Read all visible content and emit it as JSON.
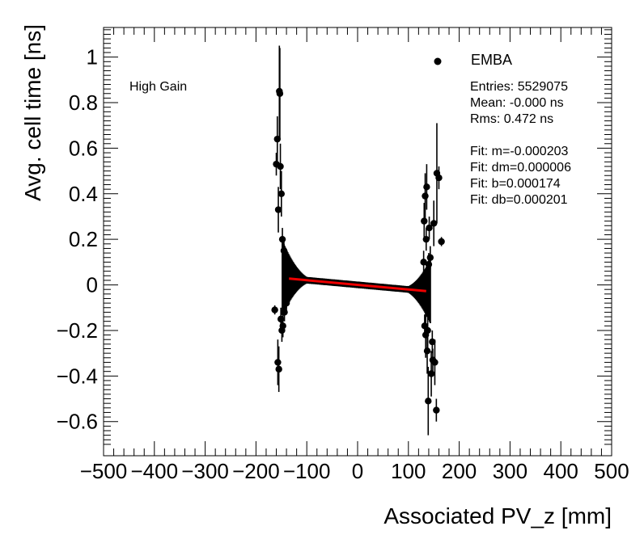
{
  "chart_data": {
    "type": "scatter",
    "xlabel": "Associated PV_z [mm]",
    "ylabel": "Avg. cell time [ns]",
    "xlim": [
      -500,
      500
    ],
    "ylim": [
      -0.75,
      1.13
    ],
    "x_ticks": [
      "−500",
      "−400",
      "−300",
      "−200",
      "−100",
      "0",
      "100",
      "200",
      "300",
      "400",
      "500"
    ],
    "y_ticks": [
      "−0.6",
      "−0.4",
      "−0.2",
      "0",
      "0.2",
      "0.4",
      "0.6",
      "0.8",
      "1"
    ],
    "x_tick_values": [
      -500,
      -400,
      -300,
      -200,
      -100,
      0,
      100,
      200,
      300,
      400,
      500
    ],
    "y_tick_values": [
      -0.6,
      -0.4,
      -0.2,
      0,
      0.2,
      0.4,
      0.6,
      0.8,
      1
    ],
    "grid": false,
    "annotation": "High Gain",
    "legend": {
      "label": "EMBA",
      "position": "top-right"
    },
    "stats": [
      "Entries: 5529075",
      "Mean: -0.000 ns",
      "Rms: 0.472 ns",
      "",
      "Fit: m=-0.000203",
      "Fit: dm=0.000006",
      "Fit: b=0.000174",
      "Fit: db=0.000201"
    ],
    "fit": {
      "m": -0.000203,
      "b": 0.000174,
      "x_range": [
        -135,
        135
      ],
      "color": "#ee0000"
    },
    "outlier_points": [
      {
        "x": -163,
        "y": -0.11,
        "err": 0.02
      },
      {
        "x": -160,
        "y": 0.53,
        "err": 0.05
      },
      {
        "x": -158,
        "y": 0.64,
        "err": 0.1
      },
      {
        "x": -157,
        "y": -0.34,
        "err": 0.1
      },
      {
        "x": -156,
        "y": 0.33,
        "err": 0.1
      },
      {
        "x": -155,
        "y": -0.37,
        "err": 0.1
      },
      {
        "x": -154,
        "y": 0.85,
        "err": 0.2
      },
      {
        "x": -153,
        "y": 0.84,
        "err": 0.2
      },
      {
        "x": -152,
        "y": 0.52,
        "err": 0.1
      },
      {
        "x": -151,
        "y": -0.15,
        "err": 0.05
      },
      {
        "x": -150,
        "y": 0.4,
        "err": 0.1
      },
      {
        "x": -149,
        "y": -0.2,
        "err": 0.05
      },
      {
        "x": -148,
        "y": 0.2,
        "err": 0.05
      },
      {
        "x": -147,
        "y": -0.18,
        "err": 0.05
      },
      {
        "x": -145,
        "y": 0.15,
        "err": 0.04
      },
      {
        "x": -144,
        "y": -0.12,
        "err": 0.04
      },
      {
        "x": -142,
        "y": 0.1,
        "err": 0.03
      },
      {
        "x": -140,
        "y": -0.08,
        "err": 0.03
      },
      {
        "x": 128,
        "y": -0.05,
        "err": 0.04
      },
      {
        "x": 130,
        "y": 0.1,
        "err": 0.05
      },
      {
        "x": 131,
        "y": 0.28,
        "err": 0.08
      },
      {
        "x": 132,
        "y": -0.18,
        "err": 0.05
      },
      {
        "x": 133,
        "y": 0.39,
        "err": 0.1
      },
      {
        "x": 134,
        "y": -0.22,
        "err": 0.1
      },
      {
        "x": 135,
        "y": 0.2,
        "err": 0.05
      },
      {
        "x": 136,
        "y": 0.43,
        "err": 0.1
      },
      {
        "x": 137,
        "y": -0.29,
        "err": 0.1
      },
      {
        "x": 138,
        "y": -0.2,
        "err": 0.1
      },
      {
        "x": 139,
        "y": -0.51,
        "err": 0.15
      },
      {
        "x": 140,
        "y": 0.09,
        "err": 0.05
      },
      {
        "x": 141,
        "y": 0.25,
        "err": 0.05
      },
      {
        "x": 143,
        "y": 0.12,
        "err": 0.05
      },
      {
        "x": 145,
        "y": -0.39,
        "err": 0.1
      },
      {
        "x": 147,
        "y": -0.25,
        "err": 0.05
      },
      {
        "x": 148,
        "y": -0.33,
        "err": 0.05
      },
      {
        "x": 150,
        "y": 0.27,
        "err": 0.1
      },
      {
        "x": 152,
        "y": -0.34,
        "err": 0.1
      },
      {
        "x": 155,
        "y": -0.55,
        "err": 0.05
      },
      {
        "x": 156,
        "y": 0.49,
        "err": 0.22
      },
      {
        "x": 160,
        "y": 0.47,
        "err": 0.05
      },
      {
        "x": 165,
        "y": 0.19,
        "err": 0.02
      }
    ]
  }
}
